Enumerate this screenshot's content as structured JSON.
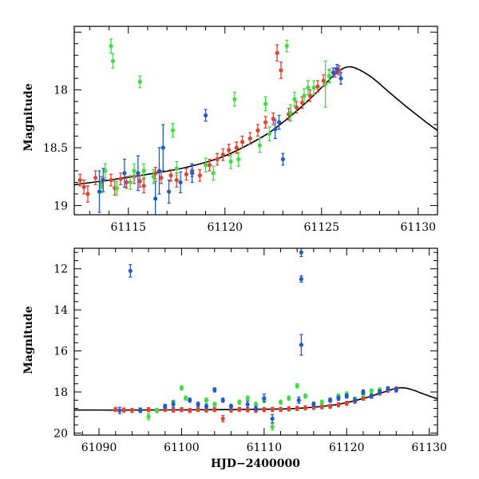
{
  "chart_data": [
    {
      "type": "scatter",
      "name": "top-panel",
      "title": "",
      "xlabel": "",
      "ylabel": "Magnitude",
      "xlim": [
        61112.2,
        61131
      ],
      "ylim": [
        17.45,
        19.08
      ],
      "y_inverted": true,
      "xticks": [
        61115,
        61120,
        61125,
        61130
      ],
      "yticks": [
        18,
        18.5,
        19
      ],
      "ytick_labels": [
        "18",
        "18.5",
        "19"
      ],
      "model_curve": {
        "x": [
          61112.2,
          61114,
          61116,
          61118,
          61120,
          61122,
          61123,
          61124,
          61125,
          61125.8,
          61126.5,
          61127.5,
          61128.5,
          61129.5,
          61130.5,
          61131
        ],
        "y": [
          18.82,
          18.78,
          18.73,
          18.67,
          18.57,
          18.4,
          18.28,
          18.14,
          17.98,
          17.85,
          17.8,
          17.88,
          18.02,
          18.16,
          18.29,
          18.35
        ]
      },
      "series": [
        {
          "name": "red",
          "color": "#e8402c",
          "points": [
            [
              61112.5,
              18.78,
              0.05
            ],
            [
              61112.7,
              18.84,
              0.06
            ],
            [
              61112.9,
              18.9,
              0.07
            ],
            [
              61113.3,
              18.76,
              0.06
            ],
            [
              61113.6,
              18.8,
              0.05
            ],
            [
              61114.1,
              18.78,
              0.05
            ],
            [
              61114.3,
              18.85,
              0.06
            ],
            [
              61114.6,
              18.77,
              0.05
            ],
            [
              61114.9,
              18.8,
              0.05
            ],
            [
              61115.3,
              18.75,
              0.06
            ],
            [
              61115.6,
              18.79,
              0.05
            ],
            [
              61115.8,
              18.83,
              0.06
            ],
            [
              61116.4,
              18.72,
              0.05
            ],
            [
              61116.7,
              18.76,
              0.05
            ],
            [
              61117.2,
              18.74,
              0.05
            ],
            [
              61117.5,
              18.78,
              0.06
            ],
            [
              61118,
              18.73,
              0.05
            ],
            [
              61118.3,
              18.7,
              0.05
            ],
            [
              61118.7,
              18.74,
              0.05
            ],
            [
              61119.2,
              18.65,
              0.05
            ],
            [
              61119.6,
              18.6,
              0.05
            ],
            [
              61119.9,
              18.56,
              0.05
            ],
            [
              61120.2,
              18.52,
              0.05
            ],
            [
              61120.6,
              18.5,
              0.05
            ],
            [
              61120.9,
              18.45,
              0.05
            ],
            [
              61121.3,
              18.42,
              0.05
            ],
            [
              61121.7,
              18.35,
              0.05
            ],
            [
              61122.1,
              18.28,
              0.05
            ],
            [
              61122.5,
              18.25,
              0.05
            ],
            [
              61122.7,
              17.68,
              0.07
            ],
            [
              61122.9,
              17.83,
              0.07
            ],
            [
              61123.3,
              18.21,
              0.05
            ],
            [
              61123.7,
              18.15,
              0.05
            ],
            [
              61124,
              18.11,
              0.05
            ],
            [
              61124.4,
              18.05,
              0.05
            ],
            [
              61124.8,
              17.97,
              0.05
            ],
            [
              61125.1,
              17.92,
              0.05
            ],
            [
              61125.4,
              17.88,
              0.05
            ],
            [
              61125.7,
              17.85,
              0.04
            ],
            [
              61125.9,
              17.83,
              0.04
            ]
          ]
        },
        {
          "name": "green",
          "color": "#3ce03c",
          "points": [
            [
              61113.6,
              18.83,
              0.06
            ],
            [
              61113.8,
              18.7,
              0.06
            ],
            [
              61114.1,
              17.62,
              0.06
            ],
            [
              61114.2,
              17.75,
              0.06
            ],
            [
              61114.4,
              18.85,
              0.06
            ],
            [
              61115.1,
              18.8,
              0.06
            ],
            [
              61115.3,
              18.7,
              0.06
            ],
            [
              61115.6,
              17.93,
              0.05
            ],
            [
              61115.8,
              18.7,
              0.06
            ],
            [
              61116.3,
              18.75,
              0.06
            ],
            [
              61117.3,
              18.35,
              0.06
            ],
            [
              61117.5,
              18.68,
              0.06
            ],
            [
              61119,
              18.65,
              0.06
            ],
            [
              61119.4,
              18.72,
              0.06
            ],
            [
              61120.3,
              18.62,
              0.06
            ],
            [
              61120.5,
              18.08,
              0.06
            ],
            [
              61120.7,
              18.6,
              0.06
            ],
            [
              61121.8,
              18.48,
              0.06
            ],
            [
              61122.1,
              18.12,
              0.06
            ],
            [
              61122.3,
              18.38,
              0.06
            ],
            [
              61123.2,
              17.62,
              0.05
            ],
            [
              61123.4,
              18.2,
              0.07
            ],
            [
              61123.6,
              18.08,
              0.06
            ],
            [
              61124.1,
              18.05,
              0.06
            ],
            [
              61124.3,
              17.98,
              0.06
            ],
            [
              61124.6,
              17.98,
              0.06
            ],
            [
              61125.2,
              17.95,
              0.2
            ],
            [
              61125.4,
              17.88,
              0.06
            ]
          ]
        },
        {
          "name": "blue",
          "color": "#1e5ad2",
          "points": [
            [
              61113.5,
              18.88,
              0.18
            ],
            [
              61113.7,
              18.78,
              0.1
            ],
            [
              61114.8,
              18.72,
              0.12
            ],
            [
              61115.5,
              18.72,
              0.15
            ],
            [
              61116.4,
              18.94,
              0.15
            ],
            [
              61116.6,
              18.7,
              0.2
            ],
            [
              61116.8,
              18.5,
              0.2
            ],
            [
              61117.1,
              18.88,
              0.1
            ],
            [
              61117.7,
              18.8,
              0.09
            ],
            [
              61118.3,
              18.72,
              0.08
            ],
            [
              61119,
              18.22,
              0.05
            ],
            [
              61122.6,
              18.34,
              0.08
            ],
            [
              61122.8,
              18.28,
              0.06
            ],
            [
              61123,
              18.6,
              0.05
            ],
            [
              61125.6,
              17.85,
              0.04
            ],
            [
              61125.8,
              17.82,
              0.04
            ],
            [
              61126,
              17.9,
              0.05
            ]
          ]
        }
      ]
    },
    {
      "type": "scatter",
      "name": "bottom-panel",
      "title": "",
      "xlabel": "HJD−2400000",
      "ylabel": "Magnitude",
      "xlim": [
        61087,
        61131
      ],
      "ylim": [
        11,
        20.1
      ],
      "y_inverted": true,
      "xticks": [
        61090,
        61100,
        61110,
        61120,
        61130
      ],
      "yticks": [
        12,
        14,
        16,
        18,
        20
      ],
      "ytick_labels": [
        "12",
        "14",
        "16",
        "18",
        "20"
      ],
      "model_curve": {
        "x": [
          61087,
          61095,
          61100,
          61105,
          61110,
          61113,
          61116,
          61119,
          61122,
          61124,
          61126,
          61127,
          61128,
          61129,
          61130,
          61131
        ],
        "y": [
          18.88,
          18.88,
          18.87,
          18.86,
          18.84,
          18.82,
          18.74,
          18.6,
          18.32,
          18.07,
          17.82,
          17.8,
          17.9,
          18.05,
          18.2,
          18.33
        ]
      },
      "series": [
        {
          "name": "red",
          "color": "#e8402c",
          "points": [
            [
              61092,
              18.85,
              0.1
            ],
            [
              61093,
              18.88,
              0.1
            ],
            [
              61094,
              18.9,
              0.1
            ],
            [
              61095,
              18.88,
              0.1
            ],
            [
              61096,
              18.86,
              0.1
            ],
            [
              61097,
              18.9,
              0.1
            ],
            [
              61098,
              18.85,
              0.1
            ],
            [
              61099,
              18.88,
              0.1
            ],
            [
              61100,
              18.86,
              0.1
            ],
            [
              61101,
              18.9,
              0.1
            ],
            [
              61102,
              18.85,
              0.1
            ],
            [
              61103,
              18.88,
              0.1
            ],
            [
              61104,
              18.86,
              0.1
            ],
            [
              61105,
              19.3,
              0.15
            ],
            [
              61106,
              18.88,
              0.1
            ],
            [
              61107,
              18.85,
              0.1
            ],
            [
              61108,
              18.87,
              0.1
            ],
            [
              61109,
              18.9,
              0.1
            ],
            [
              61110,
              18.86,
              0.1
            ],
            [
              61111,
              18.85,
              0.1
            ],
            [
              61112,
              18.85,
              0.1
            ],
            [
              61113,
              18.82,
              0.1
            ],
            [
              61114,
              18.8,
              0.1
            ],
            [
              61115,
              18.77,
              0.1
            ],
            [
              61116,
              18.75,
              0.1
            ],
            [
              61117,
              18.72,
              0.1
            ],
            [
              61118,
              18.7,
              0.1
            ],
            [
              61119,
              18.62,
              0.1
            ],
            [
              61120,
              18.55,
              0.1
            ],
            [
              61121,
              18.45,
              0.1
            ],
            [
              61122,
              18.3,
              0.1
            ],
            [
              61123,
              18.2,
              0.1
            ],
            [
              61124,
              18.05,
              0.1
            ],
            [
              61125,
              17.92,
              0.1
            ],
            [
              61126,
              17.85,
              0.1
            ]
          ]
        },
        {
          "name": "green",
          "color": "#3ce03c",
          "points": [
            [
              61096,
              19.2,
              0.15
            ],
            [
              61097,
              18.9,
              0.1
            ],
            [
              61099,
              18.5,
              0.1
            ],
            [
              61100,
              17.8,
              0.1
            ],
            [
              61100.5,
              18.3,
              0.1
            ],
            [
              61103,
              18.4,
              0.1
            ],
            [
              61104,
              18.6,
              0.1
            ],
            [
              61107,
              18.5,
              0.1
            ],
            [
              61108,
              18.3,
              0.1
            ],
            [
              61109,
              18.6,
              0.1
            ],
            [
              61110,
              18.4,
              0.1
            ],
            [
              61111,
              19.7,
              0.15
            ],
            [
              61112,
              18.5,
              0.1
            ],
            [
              61113,
              18.3,
              0.1
            ],
            [
              61114,
              17.7,
              0.1
            ],
            [
              61115,
              18.2,
              0.1
            ],
            [
              61116,
              18.6,
              0.1
            ],
            [
              61117,
              18.5,
              0.1
            ],
            [
              61118,
              18.4,
              0.1
            ],
            [
              61119,
              18.2,
              0.1
            ],
            [
              61120,
              18.1,
              0.1
            ],
            [
              61121,
              18.35,
              0.1
            ],
            [
              61122,
              18.1,
              0.1
            ],
            [
              61123,
              17.95,
              0.1
            ],
            [
              61124,
              17.9,
              0.1
            ],
            [
              61125,
              17.85,
              0.1
            ]
          ]
        },
        {
          "name": "blue",
          "color": "#1e5ad2",
          "points": [
            [
              61092.5,
              18.9,
              0.15
            ],
            [
              61093.8,
              12.1,
              0.3
            ],
            [
              61095,
              18.9,
              0.1
            ],
            [
              61098,
              18.7,
              0.1
            ],
            [
              61099,
              18.6,
              0.15
            ],
            [
              61101,
              18.4,
              0.1
            ],
            [
              61102,
              18.6,
              0.1
            ],
            [
              61103,
              18.7,
              0.12
            ],
            [
              61104,
              17.9,
              0.1
            ],
            [
              61105,
              18.4,
              0.1
            ],
            [
              61106,
              18.7,
              0.1
            ],
            [
              61108,
              18.6,
              0.15
            ],
            [
              61109,
              18.8,
              0.1
            ],
            [
              61110,
              18.3,
              0.2
            ],
            [
              61111,
              19.3,
              0.2
            ],
            [
              61114.2,
              18.4,
              0.15
            ],
            [
              61114.5,
              11.2,
              0.2
            ],
            [
              61114.5,
              12.5,
              0.15
            ],
            [
              61114.5,
              15.7,
              0.5
            ],
            [
              61116,
              18.6,
              0.1
            ],
            [
              61118,
              18.4,
              0.1
            ],
            [
              61119,
              18.3,
              0.1
            ],
            [
              61120,
              18.2,
              0.1
            ],
            [
              61121,
              18.4,
              0.1
            ],
            [
              61122,
              18.0,
              0.1
            ],
            [
              61123,
              18.2,
              0.1
            ],
            [
              61124,
              18.0,
              0.1
            ],
            [
              61125,
              17.85,
              0.1
            ],
            [
              61126,
              17.9,
              0.1
            ]
          ]
        }
      ]
    }
  ]
}
